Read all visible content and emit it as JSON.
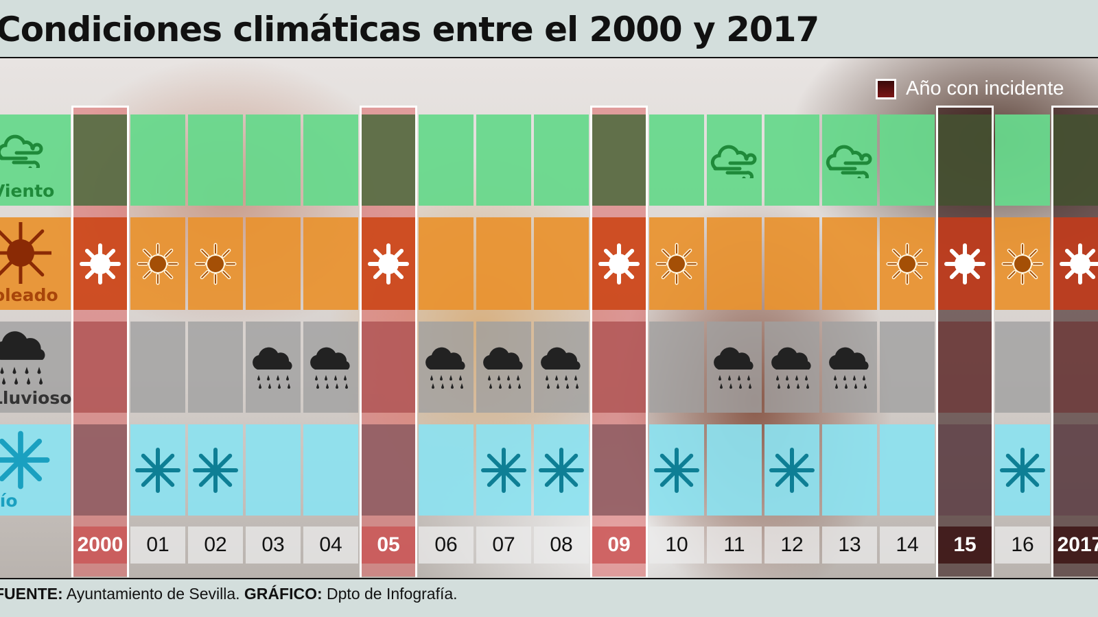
{
  "title": "Condiciones climáticas entre el 2000 y 2017",
  "legend": {
    "label": "Año con incidente"
  },
  "footer": {
    "source_label": "FUENTE:",
    "source": "Ayuntamiento de Sevilla.",
    "graphic_label": "GRÁFICO:",
    "graphic": "Dpto de Infografía."
  },
  "colors": {
    "viento": "#6fd98f",
    "soleado": "#e8922f",
    "lluvioso": "#a9a9a9",
    "frio": "#8fe3f0",
    "incidente": "#c8504f",
    "incidente_oscuro": "#3a0f12"
  },
  "chart_data": {
    "type": "table",
    "title": "Condiciones climáticas entre el 2000 y 2017",
    "rows": [
      {
        "key": "viento",
        "label": "Viento",
        "icon": "wind-cloud-icon"
      },
      {
        "key": "soleado",
        "label": "Soleado",
        "icon": "sun-icon"
      },
      {
        "key": "lluvioso",
        "label": "Lluvioso",
        "icon": "rain-cloud-icon"
      },
      {
        "key": "frio",
        "label": "Frío",
        "icon": "snowflake-icon"
      }
    ],
    "years": [
      "2000",
      "01",
      "02",
      "03",
      "04",
      "05",
      "06",
      "07",
      "08",
      "09",
      "10",
      "11",
      "12",
      "13",
      "14",
      "15",
      "16",
      "2017"
    ],
    "incident_years": {
      "2000": "red",
      "05": "red",
      "09": "red",
      "15": "dark",
      "2017": "dark"
    },
    "values": {
      "viento": [
        "11",
        "13"
      ],
      "soleado": [
        "2000",
        "01",
        "02",
        "05",
        "09",
        "10",
        "14",
        "15",
        "16",
        "2017"
      ],
      "lluvioso": [
        "03",
        "04",
        "06",
        "07",
        "08",
        "11",
        "12",
        "13"
      ],
      "frio": [
        "01",
        "02",
        "07",
        "08",
        "10",
        "12",
        "16"
      ]
    }
  }
}
